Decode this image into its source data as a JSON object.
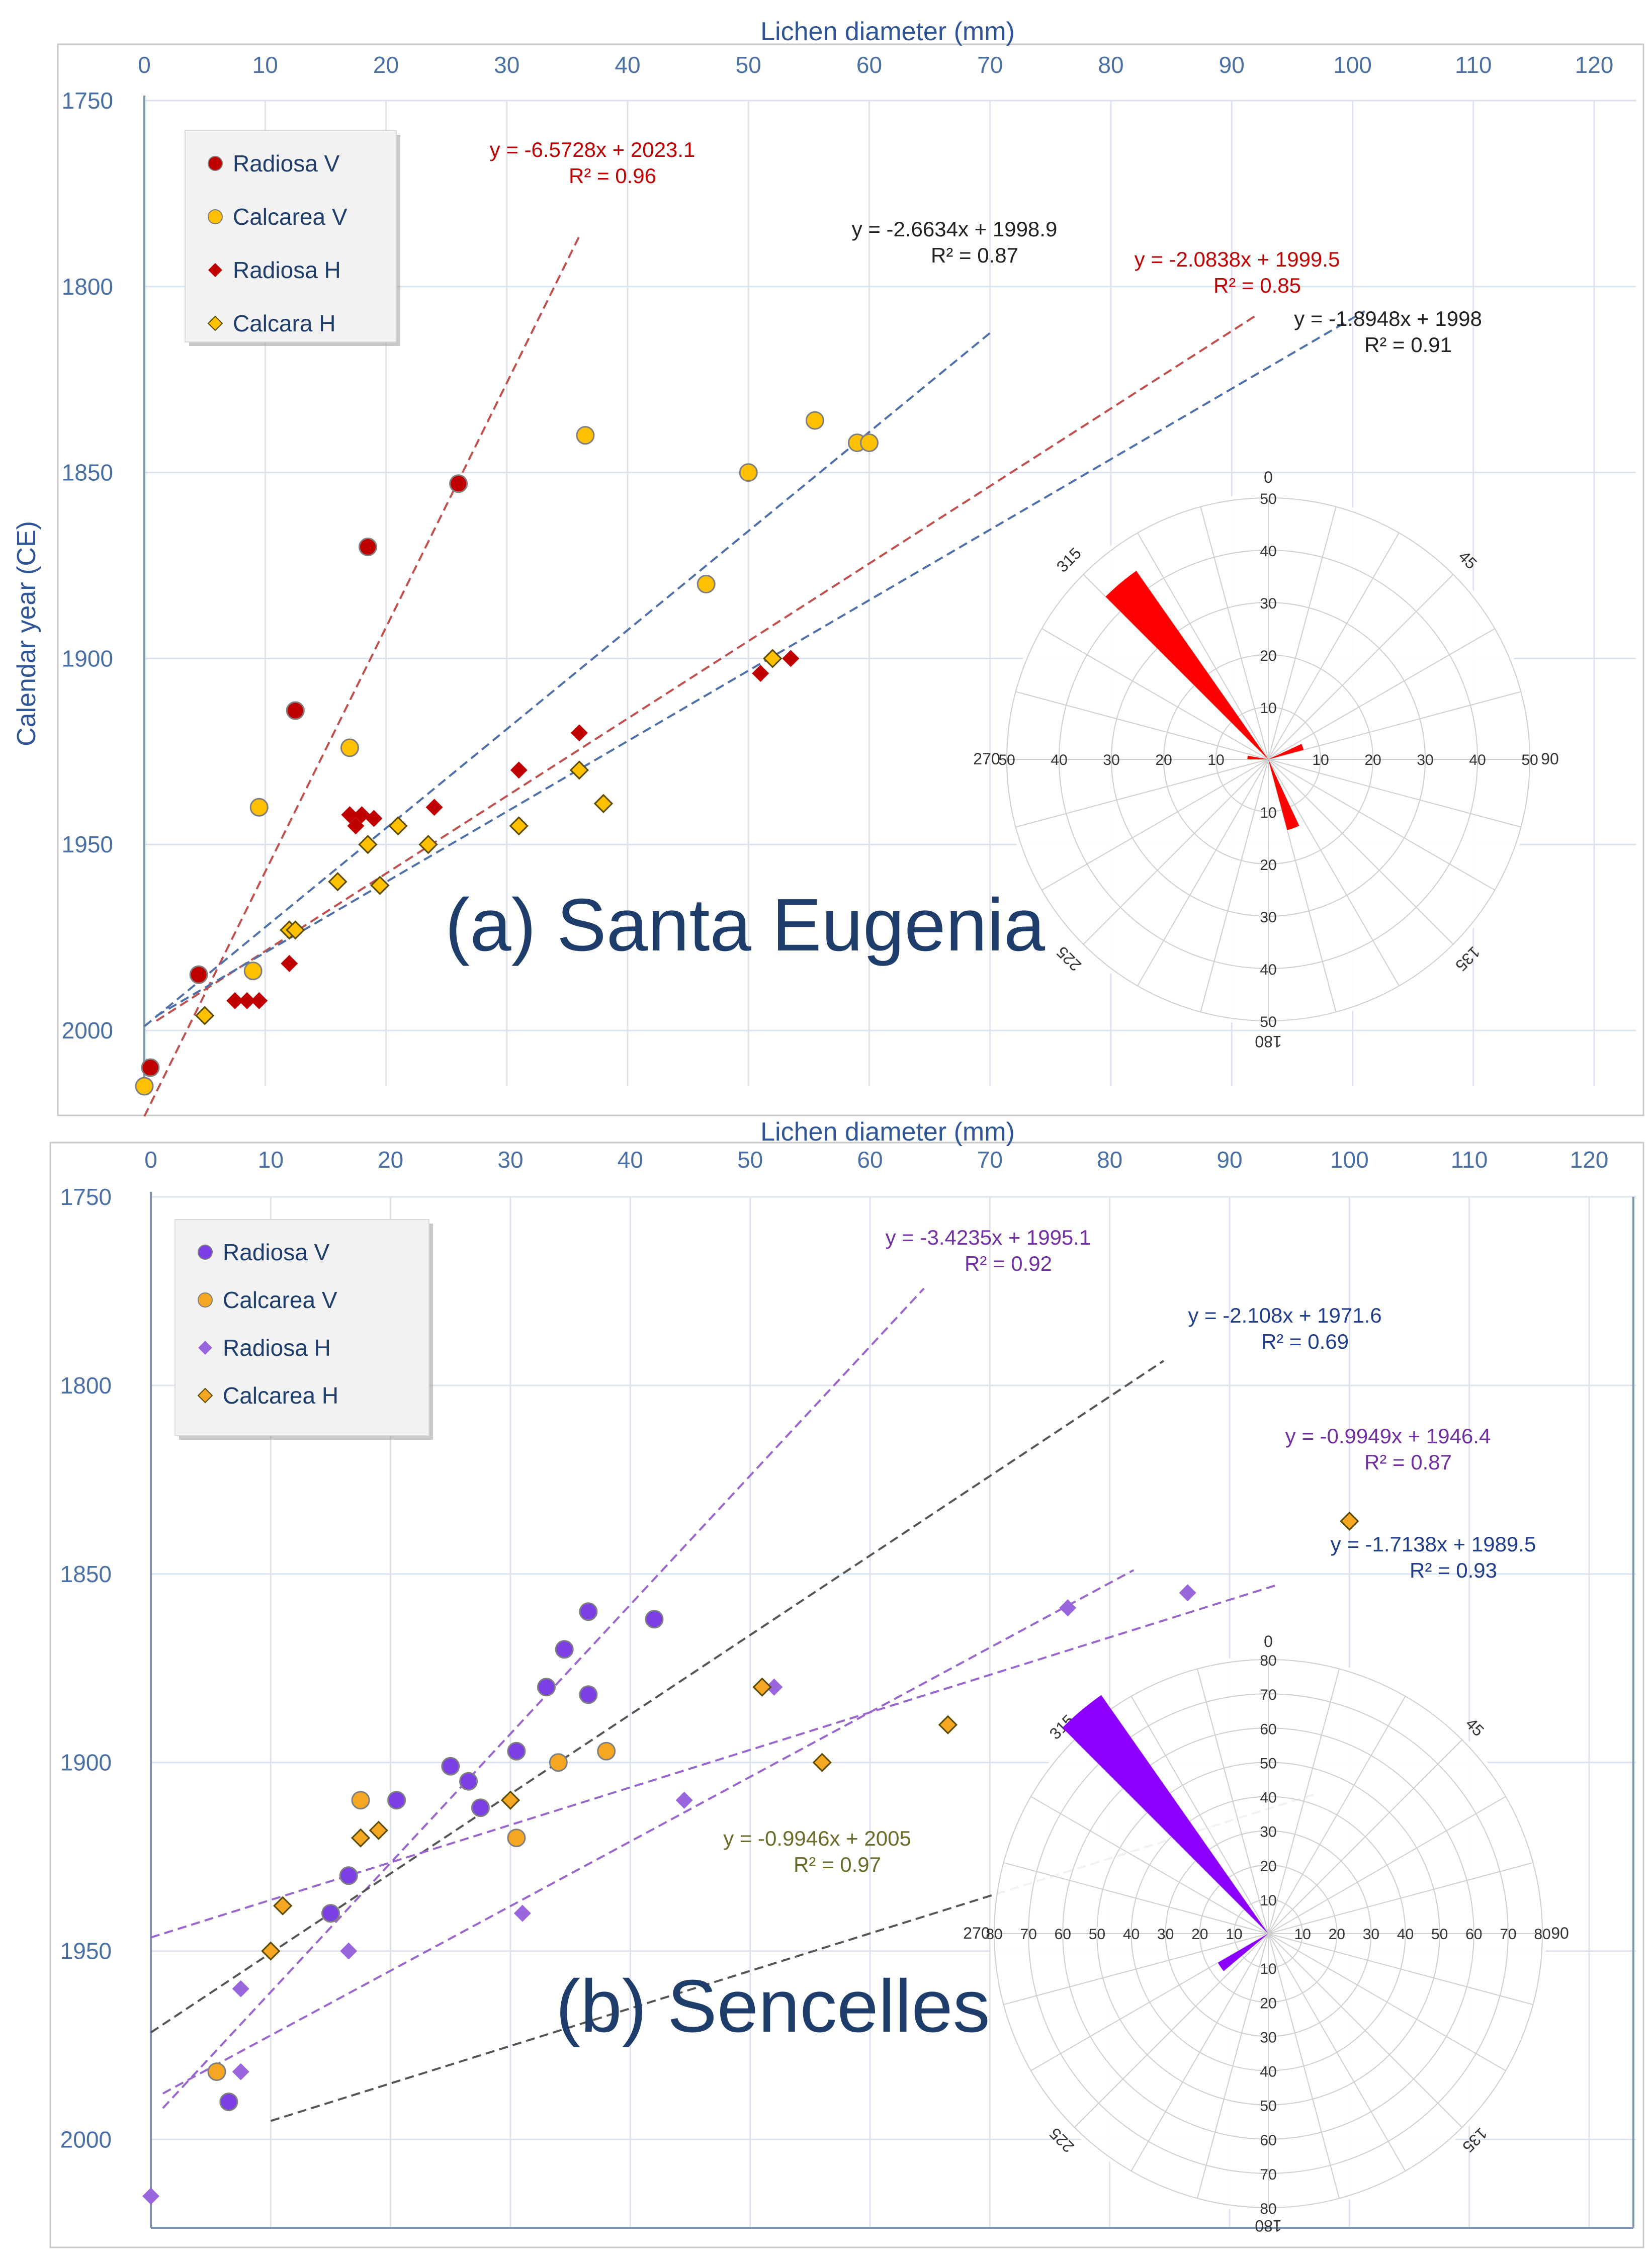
{
  "chart_data": [
    {
      "type": "scatter",
      "title": "(a) Santa Eugenia",
      "xlabel": "Lichen diameter (mm)",
      "ylabel": "Calendar year (CE)",
      "xlim": [
        0,
        120
      ],
      "ylim": [
        1750,
        2015
      ],
      "y_inverted": true,
      "x_ticks": [
        0,
        10,
        20,
        30,
        40,
        50,
        60,
        70,
        80,
        90,
        100,
        110,
        120
      ],
      "y_ticks": [
        1750,
        1800,
        1850,
        1900,
        1950,
        2000
      ],
      "legend_position": "top-left",
      "series": [
        {
          "name": "Radiosa V",
          "marker": "circle",
          "color": "#c00000",
          "x": [
            0.5,
            4.5,
            9.5,
            12.5,
            18.5,
            26
          ],
          "y": [
            2010,
            1985,
            1940,
            1914,
            1870,
            1853
          ]
        },
        {
          "name": "Calcarea V",
          "marker": "circle",
          "color": "#ffc000",
          "x": [
            0,
            9,
            9.5,
            17,
            36.5,
            46.5,
            50,
            55.5,
            59,
            60
          ],
          "y": [
            2015,
            1984,
            1940,
            1924,
            1840,
            1880,
            1850,
            1836,
            1842,
            1842
          ]
        },
        {
          "name": "Radiosa H",
          "marker": "diamond",
          "color": "#c00000",
          "x": [
            7.5,
            8.5,
            9.5,
            12,
            17,
            17.5,
            18,
            19,
            24,
            31,
            36,
            51,
            53.5
          ],
          "y": [
            1992,
            1992,
            1992,
            1982,
            1942,
            1945,
            1942,
            1943,
            1940,
            1930,
            1920,
            1904,
            1900
          ],
          "color_hex": "#c00000"
        },
        {
          "name": "Calcara H",
          "marker": "diamond",
          "color": "#ffc000",
          "x": [
            5,
            12,
            12.5,
            16,
            18.5,
            19.5,
            21,
            23.5,
            31,
            36,
            38,
            52
          ],
          "y": [
            1996,
            1973,
            1973,
            1960,
            1950,
            1961,
            1945,
            1950,
            1945,
            1930,
            1939,
            1900
          ]
        }
      ],
      "trendlines": [
        {
          "equation": "y = -6.5728x + 2023.1",
          "r2": "R² = 0.96",
          "slope": -6.5728,
          "intercept": 2023.1,
          "x_range": [
            0,
            36
          ],
          "color": "#c0504d"
        },
        {
          "equation": "y = -2.6634x + 1998.9",
          "r2": "R² = 0.87",
          "slope": -2.6634,
          "intercept": 1998.9,
          "x_range": [
            0,
            70
          ],
          "color": "#4f6fa8"
        },
        {
          "equation": "y = -2.0838x + 1999.5",
          "r2": "R² = 0.85",
          "slope": -2.0838,
          "intercept": 1999.5,
          "x_range": [
            1,
            92
          ],
          "color": "#c0504d"
        },
        {
          "equation": "y = -1.8948x + 1998",
          "r2": "R² = 0.91",
          "slope": -1.8948,
          "intercept": 1998,
          "x_range": [
            1,
            101
          ],
          "color": "#4f6fa8"
        }
      ],
      "rose": {
        "max": 50,
        "rings": [
          10,
          20,
          30,
          40,
          50
        ],
        "direction_labels": [
          "0",
          "45",
          "90",
          "135",
          "180",
          "225",
          "270",
          "315"
        ],
        "color": "#ff0000",
        "petals": [
          {
            "direction": 320,
            "width": 10,
            "value": 44
          },
          {
            "direction": 160,
            "width": 10,
            "value": 14
          },
          {
            "direction": 70,
            "width": 10,
            "value": 7
          },
          {
            "direction": 275,
            "width": 10,
            "value": 4
          }
        ]
      }
    },
    {
      "type": "scatter",
      "title": "(b) Sencelles",
      "xlabel": "Lichen diameter (mm)",
      "ylabel": "",
      "xlim": [
        0,
        120
      ],
      "ylim": [
        1750,
        2025
      ],
      "y_inverted": true,
      "x_ticks": [
        0,
        10,
        20,
        30,
        40,
        50,
        60,
        70,
        80,
        90,
        100,
        110,
        120
      ],
      "y_ticks": [
        1750,
        1800,
        1850,
        1900,
        1950,
        2000
      ],
      "legend_position": "top-left",
      "series": [
        {
          "name": "Radiosa V",
          "marker": "circle",
          "color": "#7b3fe4",
          "x": [
            6.5,
            15,
            16.5,
            20.5,
            25,
            26.5,
            27.5,
            30.5,
            33,
            34.5,
            36.5,
            36.5,
            42
          ],
          "y": [
            1990,
            1940,
            1930,
            1910,
            1901,
            1905,
            1912,
            1897,
            1880,
            1870,
            1882,
            1860,
            1862
          ]
        },
        {
          "name": "Calcarea V",
          "marker": "circle",
          "color": "#f5a623",
          "x": [
            5.5,
            17.5,
            30.5,
            34,
            38
          ],
          "y": [
            1982,
            1910,
            1920,
            1900,
            1897
          ]
        },
        {
          "name": "Radiosa H",
          "marker": "diamond",
          "color": "#9966dd",
          "x": [
            0,
            7.5,
            7.5,
            16.5,
            31,
            44.5,
            52,
            76.5,
            86.5
          ],
          "y": [
            2015,
            1960,
            1982,
            1950,
            1940,
            1910,
            1880,
            1859,
            1855
          ]
        },
        {
          "name": "Calcarea H",
          "marker": "diamond",
          "color": "#f5a623",
          "x": [
            10,
            11,
            17.5,
            19,
            30,
            51,
            56,
            66.5,
            100
          ],
          "y": [
            1950,
            1938,
            1920,
            1918,
            1910,
            1880,
            1900,
            1890,
            1836
          ]
        }
      ],
      "trendlines": [
        {
          "equation": "y = -3.4235x + 1995.1",
          "r2": "R² = 0.92",
          "slope": -3.4235,
          "intercept": 1995.1,
          "x_range": [
            1,
            64.5
          ],
          "color": "#9966cc"
        },
        {
          "equation": "y = -2.108x + 1971.6",
          "r2": "R² = 0.69",
          "slope": -2.108,
          "intercept": 1971.6,
          "x_range": [
            0,
            84.5
          ],
          "color": "#555555"
        },
        {
          "equation": "y = -0.9949x + 1946.4",
          "r2": "R² = 0.87",
          "slope": -0.9949,
          "intercept": 1946.4,
          "x_range": [
            0,
            94
          ],
          "color": "#9966cc"
        },
        {
          "equation": "y = -1.7138x + 1989.5",
          "r2": "R² = 0.93",
          "slope": -1.7138,
          "intercept": 1989.5,
          "x_range": [
            1,
            82
          ],
          "color": "#9966cc"
        },
        {
          "equation": "y = -0.9946x + 2005",
          "r2": "R² = 0.97",
          "slope": -0.9946,
          "intercept": 2005,
          "x_range": [
            10,
            97
          ],
          "color": "#555555"
        }
      ],
      "rose": {
        "max": 80,
        "rings": [
          10,
          20,
          30,
          40,
          50,
          60,
          70,
          80
        ],
        "direction_labels": [
          "0",
          "45",
          "90",
          "135",
          "180",
          "225",
          "270",
          "315"
        ],
        "color": "#8b00ff",
        "petals": [
          {
            "direction": 320,
            "width": 10,
            "value": 85
          },
          {
            "direction": 235,
            "width": 10,
            "value": 17
          }
        ]
      }
    }
  ]
}
